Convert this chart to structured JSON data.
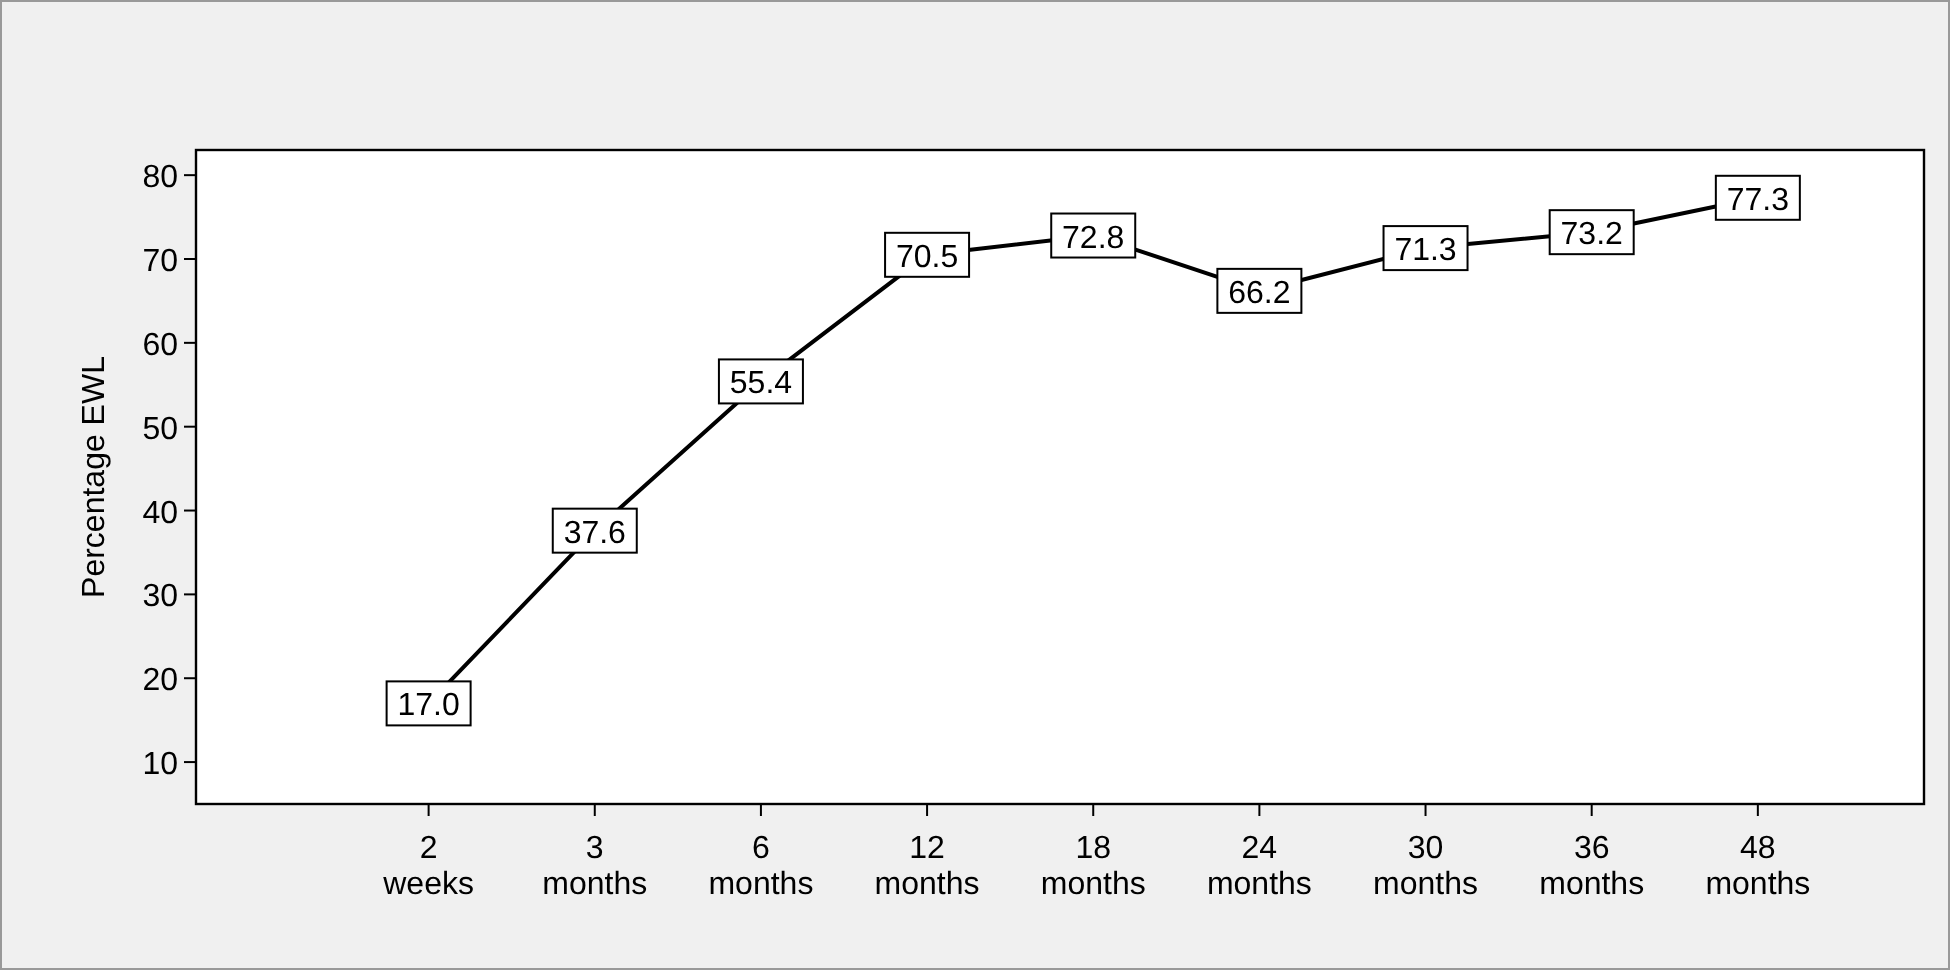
{
  "chart_data": {
    "type": "line",
    "ylabel": "Percentage EWL",
    "categories": [
      "2 weeks",
      "3 months",
      "6 months",
      "12 months",
      "18 months",
      "24 months",
      "30 months",
      "36 months",
      "48 months"
    ],
    "series": [
      {
        "color": "#000000",
        "values": [
          17.0,
          37.6,
          55.4,
          70.5,
          72.8,
          66.2,
          71.3,
          73.2,
          77.3
        ],
        "value_labels": [
          "17.0",
          "37.6",
          "55.4",
          "70.5",
          "72.8",
          "66.2",
          "71.3",
          "73.2",
          "77.3"
        ]
      }
    ],
    "ylim": [
      5,
      83
    ],
    "yticks": [
      10,
      20,
      30,
      40,
      50,
      60,
      70,
      80
    ],
    "grid": false,
    "marker": "square",
    "line_style": "solid"
  }
}
